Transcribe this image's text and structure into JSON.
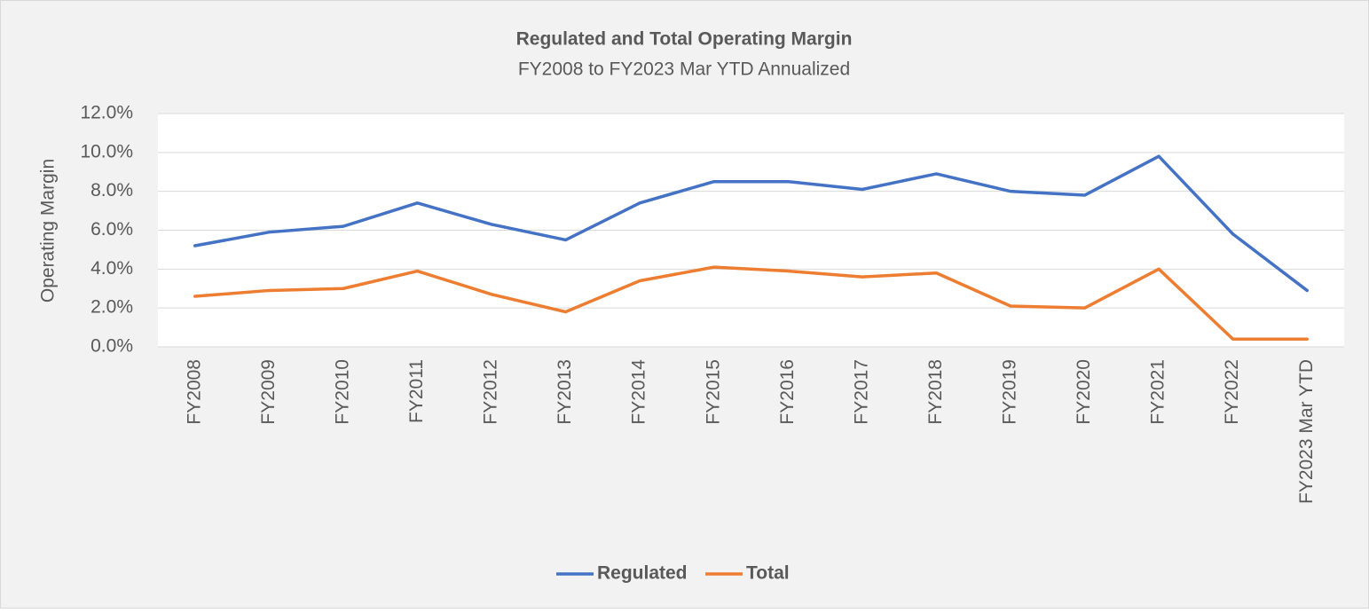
{
  "chart_data": {
    "type": "line",
    "title": "Regulated and Total Operating Margin",
    "subtitle": "FY2008 to FY2023 Mar YTD Annualized",
    "y_label": "Operating Margin",
    "categories": [
      "FY2008",
      "FY2009",
      "FY2010",
      "FY2011",
      "FY2012",
      "FY2013",
      "FY2014",
      "FY2015",
      "FY2016",
      "FY2017",
      "FY2018",
      "FY2019",
      "FY2020",
      "FY2021",
      "FY2022",
      "FY2023 Mar YTD"
    ],
    "series": [
      {
        "name": "Regulated",
        "color": "#4472c4",
        "values": [
          5.2,
          5.9,
          6.2,
          7.4,
          6.3,
          5.5,
          7.4,
          8.5,
          8.5,
          8.1,
          8.9,
          8.0,
          7.8,
          9.8,
          5.8,
          2.9
        ]
      },
      {
        "name": "Total",
        "color": "#ed7d31",
        "values": [
          2.6,
          2.9,
          3.0,
          3.9,
          2.7,
          1.8,
          3.4,
          4.1,
          3.9,
          3.6,
          3.8,
          2.1,
          2.0,
          4.0,
          0.4,
          0.4
        ]
      }
    ],
    "ylim": [
      0,
      12
    ],
    "yticks": [
      {
        "value": 0,
        "label": "0.0%"
      },
      {
        "value": 2,
        "label": "2.0%"
      },
      {
        "value": 4,
        "label": "4.0%"
      },
      {
        "value": 6,
        "label": "6.0%"
      },
      {
        "value": 8,
        "label": "8.0%"
      },
      {
        "value": 10,
        "label": "10.0%"
      },
      {
        "value": 12,
        "label": "12.0%"
      }
    ],
    "grid": true,
    "legend": "bottom"
  }
}
